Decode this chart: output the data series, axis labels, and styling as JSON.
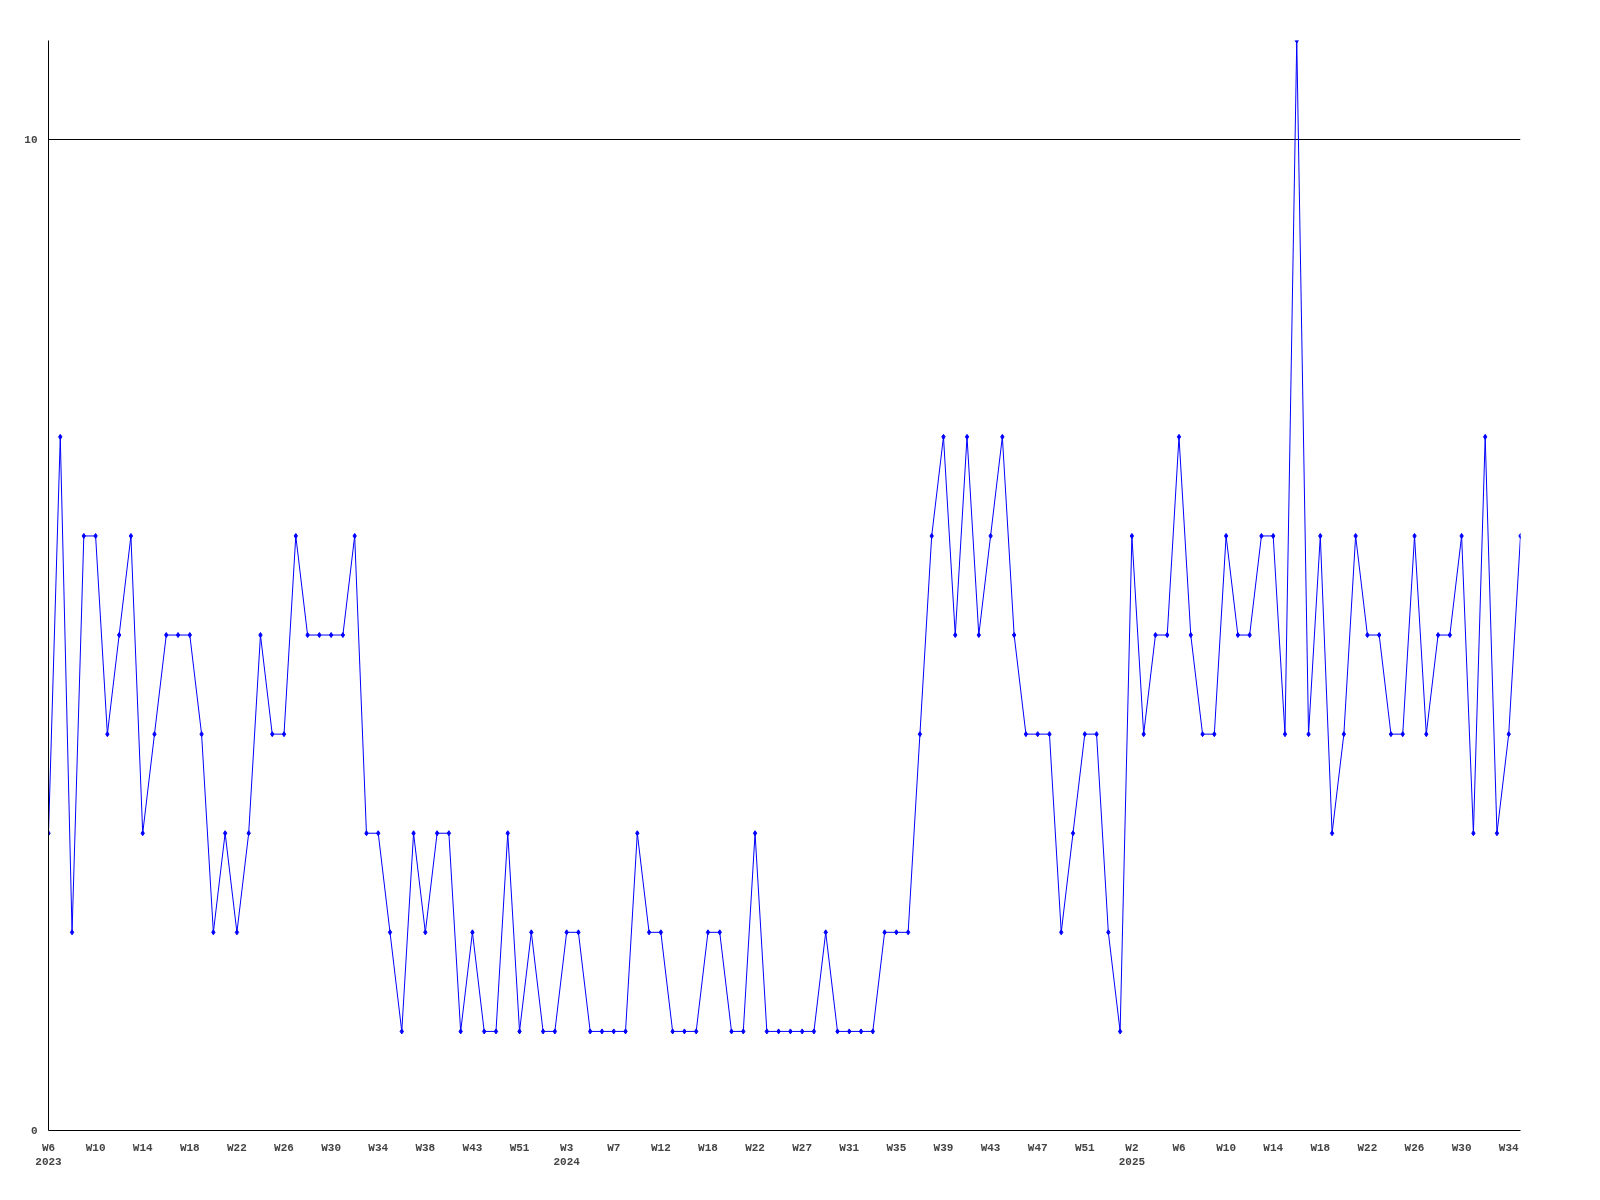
{
  "chart_data": {
    "type": "line",
    "categories": [
      "W6\n2023",
      null,
      null,
      null,
      "W10",
      null,
      null,
      null,
      "W14",
      null,
      null,
      null,
      "W18",
      null,
      null,
      null,
      "W22",
      null,
      null,
      null,
      "W26",
      null,
      null,
      null,
      "W30",
      null,
      null,
      null,
      "W34",
      null,
      null,
      null,
      "W38",
      null,
      null,
      null,
      "W43",
      null,
      null,
      null,
      "W51",
      null,
      null,
      null,
      "W3\n2024",
      null,
      null,
      null,
      "W7",
      null,
      null,
      null,
      "W12",
      null,
      null,
      null,
      "W18",
      null,
      null,
      null,
      "W22",
      null,
      null,
      null,
      "W27",
      null,
      null,
      null,
      "W31",
      null,
      null,
      null,
      "W35",
      null,
      null,
      null,
      "W39",
      null,
      null,
      null,
      "W43",
      null,
      null,
      null,
      "W47",
      null,
      null,
      null,
      "W51",
      null,
      null,
      null,
      "W2\n2025",
      null,
      null,
      null,
      "W6",
      null,
      null,
      null,
      "W10",
      null,
      null,
      null,
      "W14",
      null,
      null,
      null,
      "W18",
      null,
      null,
      null,
      "W22",
      null,
      null,
      null,
      "W26",
      null,
      null,
      null,
      "W30",
      null,
      null,
      null,
      "W34",
      null
    ],
    "series": [
      {
        "color": "#0000ff",
        "values": [
          3,
          7,
          2,
          6,
          6,
          4,
          5,
          6,
          3,
          4,
          5,
          5,
          5,
          4,
          2,
          3,
          2,
          3,
          5,
          4,
          4,
          6,
          5,
          5,
          5,
          5,
          6,
          3,
          3,
          2,
          1,
          3,
          2,
          3,
          3,
          1,
          2,
          1,
          1,
          3,
          1,
          2,
          1,
          1,
          2,
          2,
          1,
          1,
          1,
          1,
          3,
          2,
          2,
          1,
          1,
          1,
          2,
          2,
          1,
          1,
          3,
          1,
          1,
          1,
          1,
          1,
          2,
          1,
          1,
          1,
          1,
          2,
          2,
          2,
          4,
          6,
          7,
          5,
          7,
          5,
          6,
          7,
          5,
          4,
          4,
          4,
          2,
          3,
          4,
          4,
          2,
          1,
          6,
          4,
          5,
          5,
          7,
          5,
          4,
          4,
          6,
          5,
          5,
          6,
          6,
          4,
          11,
          4,
          6,
          3,
          4,
          6,
          5,
          5,
          4,
          4,
          6,
          4,
          5,
          5,
          6,
          3,
          7,
          3,
          4,
          6
        ]
      }
    ],
    "ylim": [
      0,
      11
    ],
    "yticks": [
      0,
      10
    ],
    "grid": "y",
    "marker": "diamond",
    "line_style": "solid"
  }
}
